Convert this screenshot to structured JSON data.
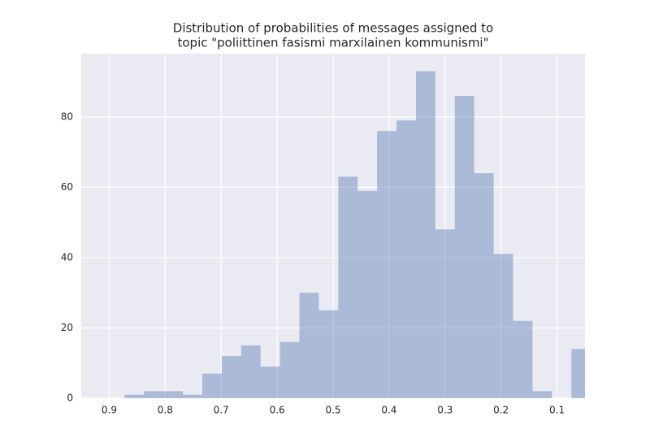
{
  "chart_data": {
    "type": "histogram",
    "title": [
      "Distribution of probabilities of messages assigned to",
      "topic \"poliittinen fasismi marxilainen kommunismi\""
    ],
    "bins": [
      0.0397,
      0.0744,
      0.1091,
      0.1438,
      0.1785,
      0.2132,
      0.2479,
      0.2826,
      0.3173,
      0.352,
      0.3867,
      0.4214,
      0.4561,
      0.4908,
      0.5255,
      0.5602,
      0.5949,
      0.6296,
      0.6643,
      0.699,
      0.7337,
      0.7684,
      0.8031,
      0.8378,
      0.8725
    ],
    "values": [
      14,
      0,
      2,
      22,
      41,
      64,
      86,
      48,
      93,
      79,
      76,
      59,
      63,
      25,
      30,
      16,
      9,
      15,
      12,
      7,
      1,
      2,
      2,
      1
    ],
    "color": "#4c72b0",
    "alpha": 0.4,
    "xlim": [
      0.95,
      0.05
    ],
    "xticks": [
      0.9,
      0.8,
      0.7,
      0.6,
      0.5,
      0.4,
      0.3,
      0.2,
      0.1
    ],
    "ylim": [
      0,
      98
    ],
    "yticks": [
      0,
      20,
      40,
      60,
      80
    ],
    "grid": true
  }
}
